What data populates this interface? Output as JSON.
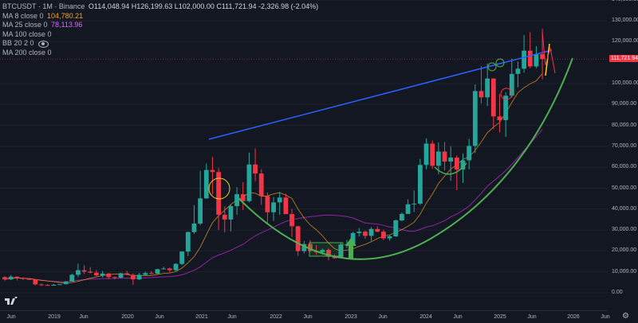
{
  "legend": {
    "symbol": "BTCUSDT · 1M · Binance",
    "ohlc": "O114,048.94 H126,199.63 L102,000.00 C111,721.94 -2,326.98 (-2.04%)",
    "ma8_label": "MA 8 close 0",
    "ma8_value": "104,780.21",
    "ma25_label": "MA 25 close 0",
    "ma25_value": "78,113.96",
    "ma100_label": "MA 100 close 0",
    "bb_label": "BB 20 2 0",
    "ma200_label": "MA 200 close 0"
  },
  "price_axis": {
    "ticks": [
      "140,000.00",
      "130,000.00",
      "120,000.00",
      "111,721.94",
      "100,000.00",
      "90,000.00",
      "80,000.00",
      "70,000.00",
      "60,000.00",
      "50,000.00",
      "40,000.00",
      "30,000.00",
      "20,000.00",
      "10,000.00",
      "0.00"
    ]
  },
  "current_price_label": "111,721.94",
  "time_axis": {
    "ticks": [
      "Jun",
      "2019",
      "Jun",
      "2020",
      "Jun",
      "2021",
      "Jun",
      "2022",
      "Jun",
      "2023",
      "Jun",
      "2024",
      "Jun",
      "2025",
      "Jun",
      "2026",
      "Jun"
    ]
  },
  "colors": {
    "up": "#26a69a",
    "down": "#f23645",
    "trendline": "#2962ff",
    "curve": "#4caf50",
    "ma8": "#f7a21b",
    "ma25": "#9c27b0"
  },
  "icons": {
    "logo": "tradingview-logo-icon",
    "settings": "gear-icon",
    "visibility": "eye-icon"
  },
  "chart_data": {
    "type": "candlestick",
    "symbol": "BTCUSDT",
    "interval": "1M",
    "exchange": "Binance",
    "ylim": [
      0,
      140000
    ],
    "candles": [
      {
        "t": "2018-06",
        "o": 7500,
        "h": 7800,
        "l": 5800,
        "c": 6400
      },
      {
        "t": "2018-07",
        "o": 6400,
        "h": 8500,
        "l": 6100,
        "c": 7700
      },
      {
        "t": "2018-08",
        "o": 7700,
        "h": 7800,
        "l": 5900,
        "c": 7000
      },
      {
        "t": "2018-09",
        "o": 7000,
        "h": 7400,
        "l": 6100,
        "c": 6600
      },
      {
        "t": "2018-10",
        "o": 6600,
        "h": 7000,
        "l": 6200,
        "c": 6400
      },
      {
        "t": "2018-11",
        "o": 6400,
        "h": 6600,
        "l": 3600,
        "c": 4000
      },
      {
        "t": "2018-12",
        "o": 4000,
        "h": 4400,
        "l": 3200,
        "c": 3700
      },
      {
        "t": "2019-01",
        "o": 3700,
        "h": 4100,
        "l": 3400,
        "c": 3400
      },
      {
        "t": "2019-02",
        "o": 3400,
        "h": 4200,
        "l": 3400,
        "c": 3800
      },
      {
        "t": "2019-03",
        "o": 3800,
        "h": 4100,
        "l": 3700,
        "c": 4100
      },
      {
        "t": "2019-04",
        "o": 4100,
        "h": 5600,
        "l": 4000,
        "c": 5300
      },
      {
        "t": "2019-05",
        "o": 5300,
        "h": 9100,
        "l": 5300,
        "c": 8600
      },
      {
        "t": "2019-06",
        "o": 8600,
        "h": 13900,
        "l": 7400,
        "c": 10800
      },
      {
        "t": "2019-07",
        "o": 10800,
        "h": 13200,
        "l": 9000,
        "c": 10100
      },
      {
        "t": "2019-08",
        "o": 10100,
        "h": 12300,
        "l": 9300,
        "c": 9600
      },
      {
        "t": "2019-09",
        "o": 9600,
        "h": 10900,
        "l": 7700,
        "c": 8300
      },
      {
        "t": "2019-10",
        "o": 8300,
        "h": 10400,
        "l": 7300,
        "c": 9200
      },
      {
        "t": "2019-11",
        "o": 9200,
        "h": 9500,
        "l": 6500,
        "c": 7500
      },
      {
        "t": "2019-12",
        "o": 7500,
        "h": 7800,
        "l": 6400,
        "c": 7200
      },
      {
        "t": "2020-01",
        "o": 7200,
        "h": 9600,
        "l": 6800,
        "c": 9300
      },
      {
        "t": "2020-02",
        "o": 9300,
        "h": 10500,
        "l": 8400,
        "c": 8600
      },
      {
        "t": "2020-03",
        "o": 8600,
        "h": 9200,
        "l": 3800,
        "c": 6400
      },
      {
        "t": "2020-04",
        "o": 6400,
        "h": 9500,
        "l": 6100,
        "c": 8600
      },
      {
        "t": "2020-05",
        "o": 8600,
        "h": 10100,
        "l": 8100,
        "c": 9400
      },
      {
        "t": "2020-06",
        "o": 9400,
        "h": 10400,
        "l": 8800,
        "c": 9100
      },
      {
        "t": "2020-07",
        "o": 9100,
        "h": 11400,
        "l": 8900,
        "c": 11300
      },
      {
        "t": "2020-08",
        "o": 11300,
        "h": 12500,
        "l": 11100,
        "c": 11600
      },
      {
        "t": "2020-09",
        "o": 11600,
        "h": 12000,
        "l": 9800,
        "c": 10800
      },
      {
        "t": "2020-10",
        "o": 10800,
        "h": 14100,
        "l": 10400,
        "c": 13800
      },
      {
        "t": "2020-11",
        "o": 13800,
        "h": 19900,
        "l": 13200,
        "c": 19700
      },
      {
        "t": "2020-12",
        "o": 19700,
        "h": 29300,
        "l": 17600,
        "c": 29000
      },
      {
        "t": "2021-01",
        "o": 29000,
        "h": 41900,
        "l": 28100,
        "c": 33100
      },
      {
        "t": "2021-02",
        "o": 33100,
        "h": 58300,
        "l": 32300,
        "c": 45100
      },
      {
        "t": "2021-03",
        "o": 45100,
        "h": 61800,
        "l": 45000,
        "c": 58700
      },
      {
        "t": "2021-04",
        "o": 58700,
        "h": 64900,
        "l": 47000,
        "c": 57700
      },
      {
        "t": "2021-05",
        "o": 57700,
        "h": 59600,
        "l": 30000,
        "c": 37300
      },
      {
        "t": "2021-06",
        "o": 37300,
        "h": 41300,
        "l": 28800,
        "c": 35000
      },
      {
        "t": "2021-07",
        "o": 35000,
        "h": 42400,
        "l": 29300,
        "c": 41400
      },
      {
        "t": "2021-08",
        "o": 41400,
        "h": 50500,
        "l": 37300,
        "c": 47100
      },
      {
        "t": "2021-09",
        "o": 47100,
        "h": 52900,
        "l": 39600,
        "c": 43800
      },
      {
        "t": "2021-10",
        "o": 43800,
        "h": 67000,
        "l": 43200,
        "c": 61300
      },
      {
        "t": "2021-11",
        "o": 61300,
        "h": 69000,
        "l": 53300,
        "c": 57000
      },
      {
        "t": "2021-12",
        "o": 57000,
        "h": 59000,
        "l": 42000,
        "c": 46200
      },
      {
        "t": "2022-01",
        "o": 46200,
        "h": 47900,
        "l": 32900,
        "c": 38500
      },
      {
        "t": "2022-02",
        "o": 38500,
        "h": 45800,
        "l": 34300,
        "c": 43200
      },
      {
        "t": "2022-03",
        "o": 43200,
        "h": 48200,
        "l": 37200,
        "c": 45500
      },
      {
        "t": "2022-04",
        "o": 45500,
        "h": 47400,
        "l": 37600,
        "c": 37600
      },
      {
        "t": "2022-05",
        "o": 37600,
        "h": 40000,
        "l": 26700,
        "c": 31800
      },
      {
        "t": "2022-06",
        "o": 31800,
        "h": 31900,
        "l": 17600,
        "c": 19900
      },
      {
        "t": "2022-07",
        "o": 19900,
        "h": 24700,
        "l": 18800,
        "c": 23300
      },
      {
        "t": "2022-08",
        "o": 23300,
        "h": 25200,
        "l": 19500,
        "c": 20000
      },
      {
        "t": "2022-09",
        "o": 20000,
        "h": 22800,
        "l": 18100,
        "c": 19400
      },
      {
        "t": "2022-10",
        "o": 19400,
        "h": 21100,
        "l": 18200,
        "c": 20500
      },
      {
        "t": "2022-11",
        "o": 20500,
        "h": 21400,
        "l": 15500,
        "c": 17200
      },
      {
        "t": "2022-12",
        "o": 17200,
        "h": 18400,
        "l": 16300,
        "c": 16500
      },
      {
        "t": "2023-01",
        "o": 16500,
        "h": 23900,
        "l": 16500,
        "c": 23100
      },
      {
        "t": "2023-02",
        "o": 23100,
        "h": 25300,
        "l": 21300,
        "c": 23100
      },
      {
        "t": "2023-03",
        "o": 23100,
        "h": 29200,
        "l": 19500,
        "c": 28500
      },
      {
        "t": "2023-04",
        "o": 28500,
        "h": 31000,
        "l": 26900,
        "c": 29200
      },
      {
        "t": "2023-05",
        "o": 29200,
        "h": 29800,
        "l": 25800,
        "c": 27200
      },
      {
        "t": "2023-06",
        "o": 27200,
        "h": 31400,
        "l": 24800,
        "c": 30500
      },
      {
        "t": "2023-07",
        "o": 30500,
        "h": 31800,
        "l": 28900,
        "c": 29200
      },
      {
        "t": "2023-08",
        "o": 29200,
        "h": 30200,
        "l": 25200,
        "c": 26000
      },
      {
        "t": "2023-09",
        "o": 26000,
        "h": 27500,
        "l": 24900,
        "c": 27000
      },
      {
        "t": "2023-10",
        "o": 27000,
        "h": 35000,
        "l": 26600,
        "c": 34600
      },
      {
        "t": "2023-11",
        "o": 34600,
        "h": 38400,
        "l": 34100,
        "c": 37700
      },
      {
        "t": "2023-12",
        "o": 37700,
        "h": 44700,
        "l": 37600,
        "c": 42300
      },
      {
        "t": "2024-01",
        "o": 42300,
        "h": 48900,
        "l": 38600,
        "c": 42600
      },
      {
        "t": "2024-02",
        "o": 42600,
        "h": 64000,
        "l": 41900,
        "c": 61100
      },
      {
        "t": "2024-03",
        "o": 61100,
        "h": 73800,
        "l": 59000,
        "c": 71300
      },
      {
        "t": "2024-04",
        "o": 71300,
        "h": 72800,
        "l": 59200,
        "c": 60700
      },
      {
        "t": "2024-05",
        "o": 60700,
        "h": 71900,
        "l": 56600,
        "c": 67500
      },
      {
        "t": "2024-06",
        "o": 67500,
        "h": 72000,
        "l": 58400,
        "c": 62700
      },
      {
        "t": "2024-07",
        "o": 62700,
        "h": 70100,
        "l": 53500,
        "c": 64600
      },
      {
        "t": "2024-08",
        "o": 64600,
        "h": 65600,
        "l": 49000,
        "c": 58900
      },
      {
        "t": "2024-09",
        "o": 58900,
        "h": 66500,
        "l": 52500,
        "c": 63300
      },
      {
        "t": "2024-10",
        "o": 63300,
        "h": 73600,
        "l": 58900,
        "c": 70200
      },
      {
        "t": "2024-11",
        "o": 70200,
        "h": 99600,
        "l": 66800,
        "c": 96400
      },
      {
        "t": "2024-12",
        "o": 96400,
        "h": 108300,
        "l": 90500,
        "c": 93400
      },
      {
        "t": "2025-01",
        "o": 93400,
        "h": 109600,
        "l": 89200,
        "c": 102400
      },
      {
        "t": "2025-02",
        "o": 102400,
        "h": 102500,
        "l": 78200,
        "c": 84300
      },
      {
        "t": "2025-03",
        "o": 84300,
        "h": 95000,
        "l": 76600,
        "c": 82500
      },
      {
        "t": "2025-04",
        "o": 82500,
        "h": 95700,
        "l": 74500,
        "c": 94200
      },
      {
        "t": "2025-05",
        "o": 94200,
        "h": 111900,
        "l": 93300,
        "c": 104600
      },
      {
        "t": "2025-06",
        "o": 104600,
        "h": 110500,
        "l": 98200,
        "c": 107100
      },
      {
        "t": "2025-07",
        "o": 107100,
        "h": 123200,
        "l": 105200,
        "c": 115700
      },
      {
        "t": "2025-08",
        "o": 115700,
        "h": 124500,
        "l": 107300,
        "c": 108200
      },
      {
        "t": "2025-09",
        "o": 108200,
        "h": 117900,
        "l": 107300,
        "c": 114000
      },
      {
        "t": "2025-10",
        "o": 114048.94,
        "h": 126199.63,
        "l": 102000.0,
        "c": 111721.94
      }
    ]
  }
}
